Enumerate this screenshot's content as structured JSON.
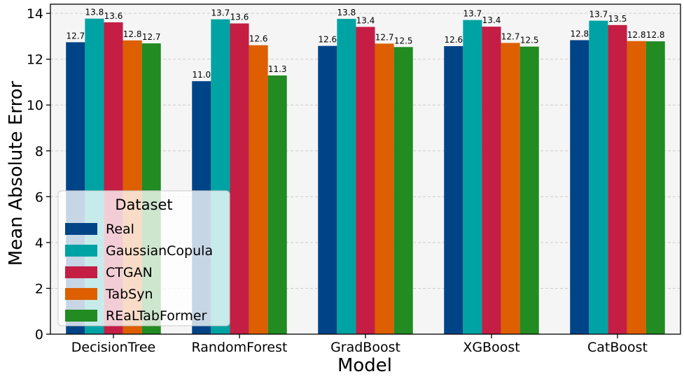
{
  "chart_data": {
    "type": "bar",
    "title": "",
    "xlabel": "Model",
    "ylabel": "Mean Absolute Error",
    "ylim": [
      0,
      14.4
    ],
    "yticks": [
      0,
      2,
      4,
      6,
      8,
      10,
      12,
      14
    ],
    "grid": true,
    "legend": {
      "title": "Dataset",
      "placement": "lower-left"
    },
    "categories": [
      "DecisionTree",
      "RandomForest",
      "GradBoost",
      "XGBoost",
      "CatBoost"
    ],
    "series": [
      {
        "name": "Real",
        "color": "#004488",
        "values": [
          12.74,
          11.04,
          12.58,
          12.57,
          12.83
        ],
        "labels": [
          "12.7",
          "11.0",
          "12.6",
          "12.6",
          "12.8"
        ]
      },
      {
        "name": "GaussianCopula",
        "color": "#00A3A3",
        "values": [
          13.77,
          13.74,
          13.76,
          13.71,
          13.68
        ],
        "labels": [
          "13.8",
          "13.7",
          "13.8",
          "13.7",
          "13.7"
        ]
      },
      {
        "name": "CTGAN",
        "color": "#C41E45",
        "values": [
          13.61,
          13.56,
          13.41,
          13.42,
          13.49
        ],
        "labels": [
          "13.6",
          "13.6",
          "13.4",
          "13.4",
          "13.5"
        ]
      },
      {
        "name": "TabSyn",
        "color": "#DD5F00",
        "values": [
          12.82,
          12.61,
          12.68,
          12.71,
          12.79
        ],
        "labels": [
          "12.8",
          "12.6",
          "12.7",
          "12.7",
          "12.8"
        ]
      },
      {
        "name": "REaLTabFormer",
        "color": "#228B22",
        "values": [
          12.69,
          11.29,
          12.53,
          12.55,
          12.78
        ],
        "labels": [
          "12.7",
          "11.3",
          "12.5",
          "12.5",
          "12.8"
        ]
      }
    ]
  }
}
